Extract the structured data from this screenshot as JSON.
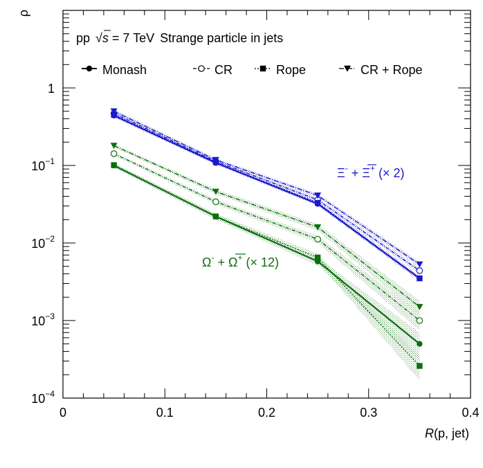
{
  "chart_data": {
    "type": "line",
    "title": "pp √s = 7 TeV  Strange particle in jets",
    "title_parts": {
      "system": "pp",
      "sqrt": "√",
      "s": "s",
      "energy": "= 7 TeV",
      "subject": "Strange particle in jets"
    },
    "xlabel": "R(p, jet)",
    "xlabel_parts": {
      "italic": "R",
      "rest": "(p, jet)"
    },
    "ylabel": "ρ",
    "xlim": [
      0,
      0.4
    ],
    "ylim": [
      0.0001,
      10
    ],
    "yscale": "log",
    "x_ticks": [
      {
        "v": 0,
        "label": "0"
      },
      {
        "v": 0.1,
        "label": "0.1"
      },
      {
        "v": 0.2,
        "label": "0.2"
      },
      {
        "v": 0.3,
        "label": "0.3"
      },
      {
        "v": 0.4,
        "label": "0.4"
      }
    ],
    "y_ticks": [
      {
        "v": 1,
        "label": "1",
        "sup": ""
      },
      {
        "v": 0.1,
        "label": "10",
        "sup": "−1"
      },
      {
        "v": 0.01,
        "label": "10",
        "sup": "−2"
      },
      {
        "v": 0.001,
        "label": "10",
        "sup": "−3"
      },
      {
        "v": 0.0001,
        "label": "10",
        "sup": "−4"
      }
    ],
    "legend": [
      {
        "name": "Monash",
        "marker": "filled-circle",
        "dash": ""
      },
      {
        "name": "CR",
        "marker": "open-circle",
        "dash": "5,2,1,2"
      },
      {
        "name": "Rope",
        "marker": "filled-square",
        "dash": "2,2"
      },
      {
        "name": "CR + Rope",
        "marker": "filled-triangle-down",
        "dash": "7,2,1,2"
      }
    ],
    "legend_position": "top",
    "x": [
      0.05,
      0.15,
      0.25,
      0.35
    ],
    "groups": [
      {
        "label": "Ξ⁻ + Ξ̄⁺ (× 2)",
        "label_parts": {
          "p1": "Ξ",
          "s1": "-",
          "mid": " + ",
          "p2": "Ξ",
          "s2": "+",
          "tail": " (× 2)"
        },
        "color": "#1a1ac8",
        "series": [
          {
            "name": "Monash",
            "values": [
              0.44,
              0.108,
              0.032,
              0.0035
            ],
            "err_rel": [
              0.06,
              0.05,
              0.06,
              0.08
            ]
          },
          {
            "name": "CR",
            "values": [
              0.47,
              0.113,
              0.036,
              0.0044
            ],
            "err_rel": [
              0.06,
              0.05,
              0.06,
              0.08
            ]
          },
          {
            "name": "Rope",
            "values": [
              0.45,
              0.11,
              0.033,
              0.0035
            ],
            "err_rel": [
              0.06,
              0.05,
              0.06,
              0.08
            ]
          },
          {
            "name": "CR + Rope",
            "values": [
              0.5,
              0.118,
              0.041,
              0.0053
            ],
            "err_rel": [
              0.06,
              0.05,
              0.06,
              0.08
            ]
          }
        ]
      },
      {
        "label": "Ω⁻ + Ω̄⁺ (× 12)",
        "label_parts": {
          "p1": "Ω",
          "s1": "-",
          "mid": " + ",
          "p2": "Ω",
          "s2": "+",
          "tail": " (× 12)"
        },
        "color": "#0d6e0d",
        "series": [
          {
            "name": "Monash",
            "values": [
              0.1,
              0.022,
              0.0058,
              0.0005
            ],
            "err_rel": [
              0.06,
              0.08,
              0.12,
              0.4
            ]
          },
          {
            "name": "CR",
            "values": [
              0.142,
              0.034,
              0.0112,
              0.001
            ],
            "err_rel": [
              0.05,
              0.07,
              0.1,
              0.25
            ]
          },
          {
            "name": "Rope",
            "values": [
              0.101,
              0.022,
              0.0065,
              0.00026
            ],
            "err_rel": [
              0.06,
              0.08,
              0.12,
              0.35
            ]
          },
          {
            "name": "CR + Rope",
            "values": [
              0.18,
              0.046,
              0.016,
              0.0015
            ],
            "err_rel": [
              0.05,
              0.07,
              0.1,
              0.2
            ]
          }
        ]
      }
    ],
    "grid": false
  }
}
